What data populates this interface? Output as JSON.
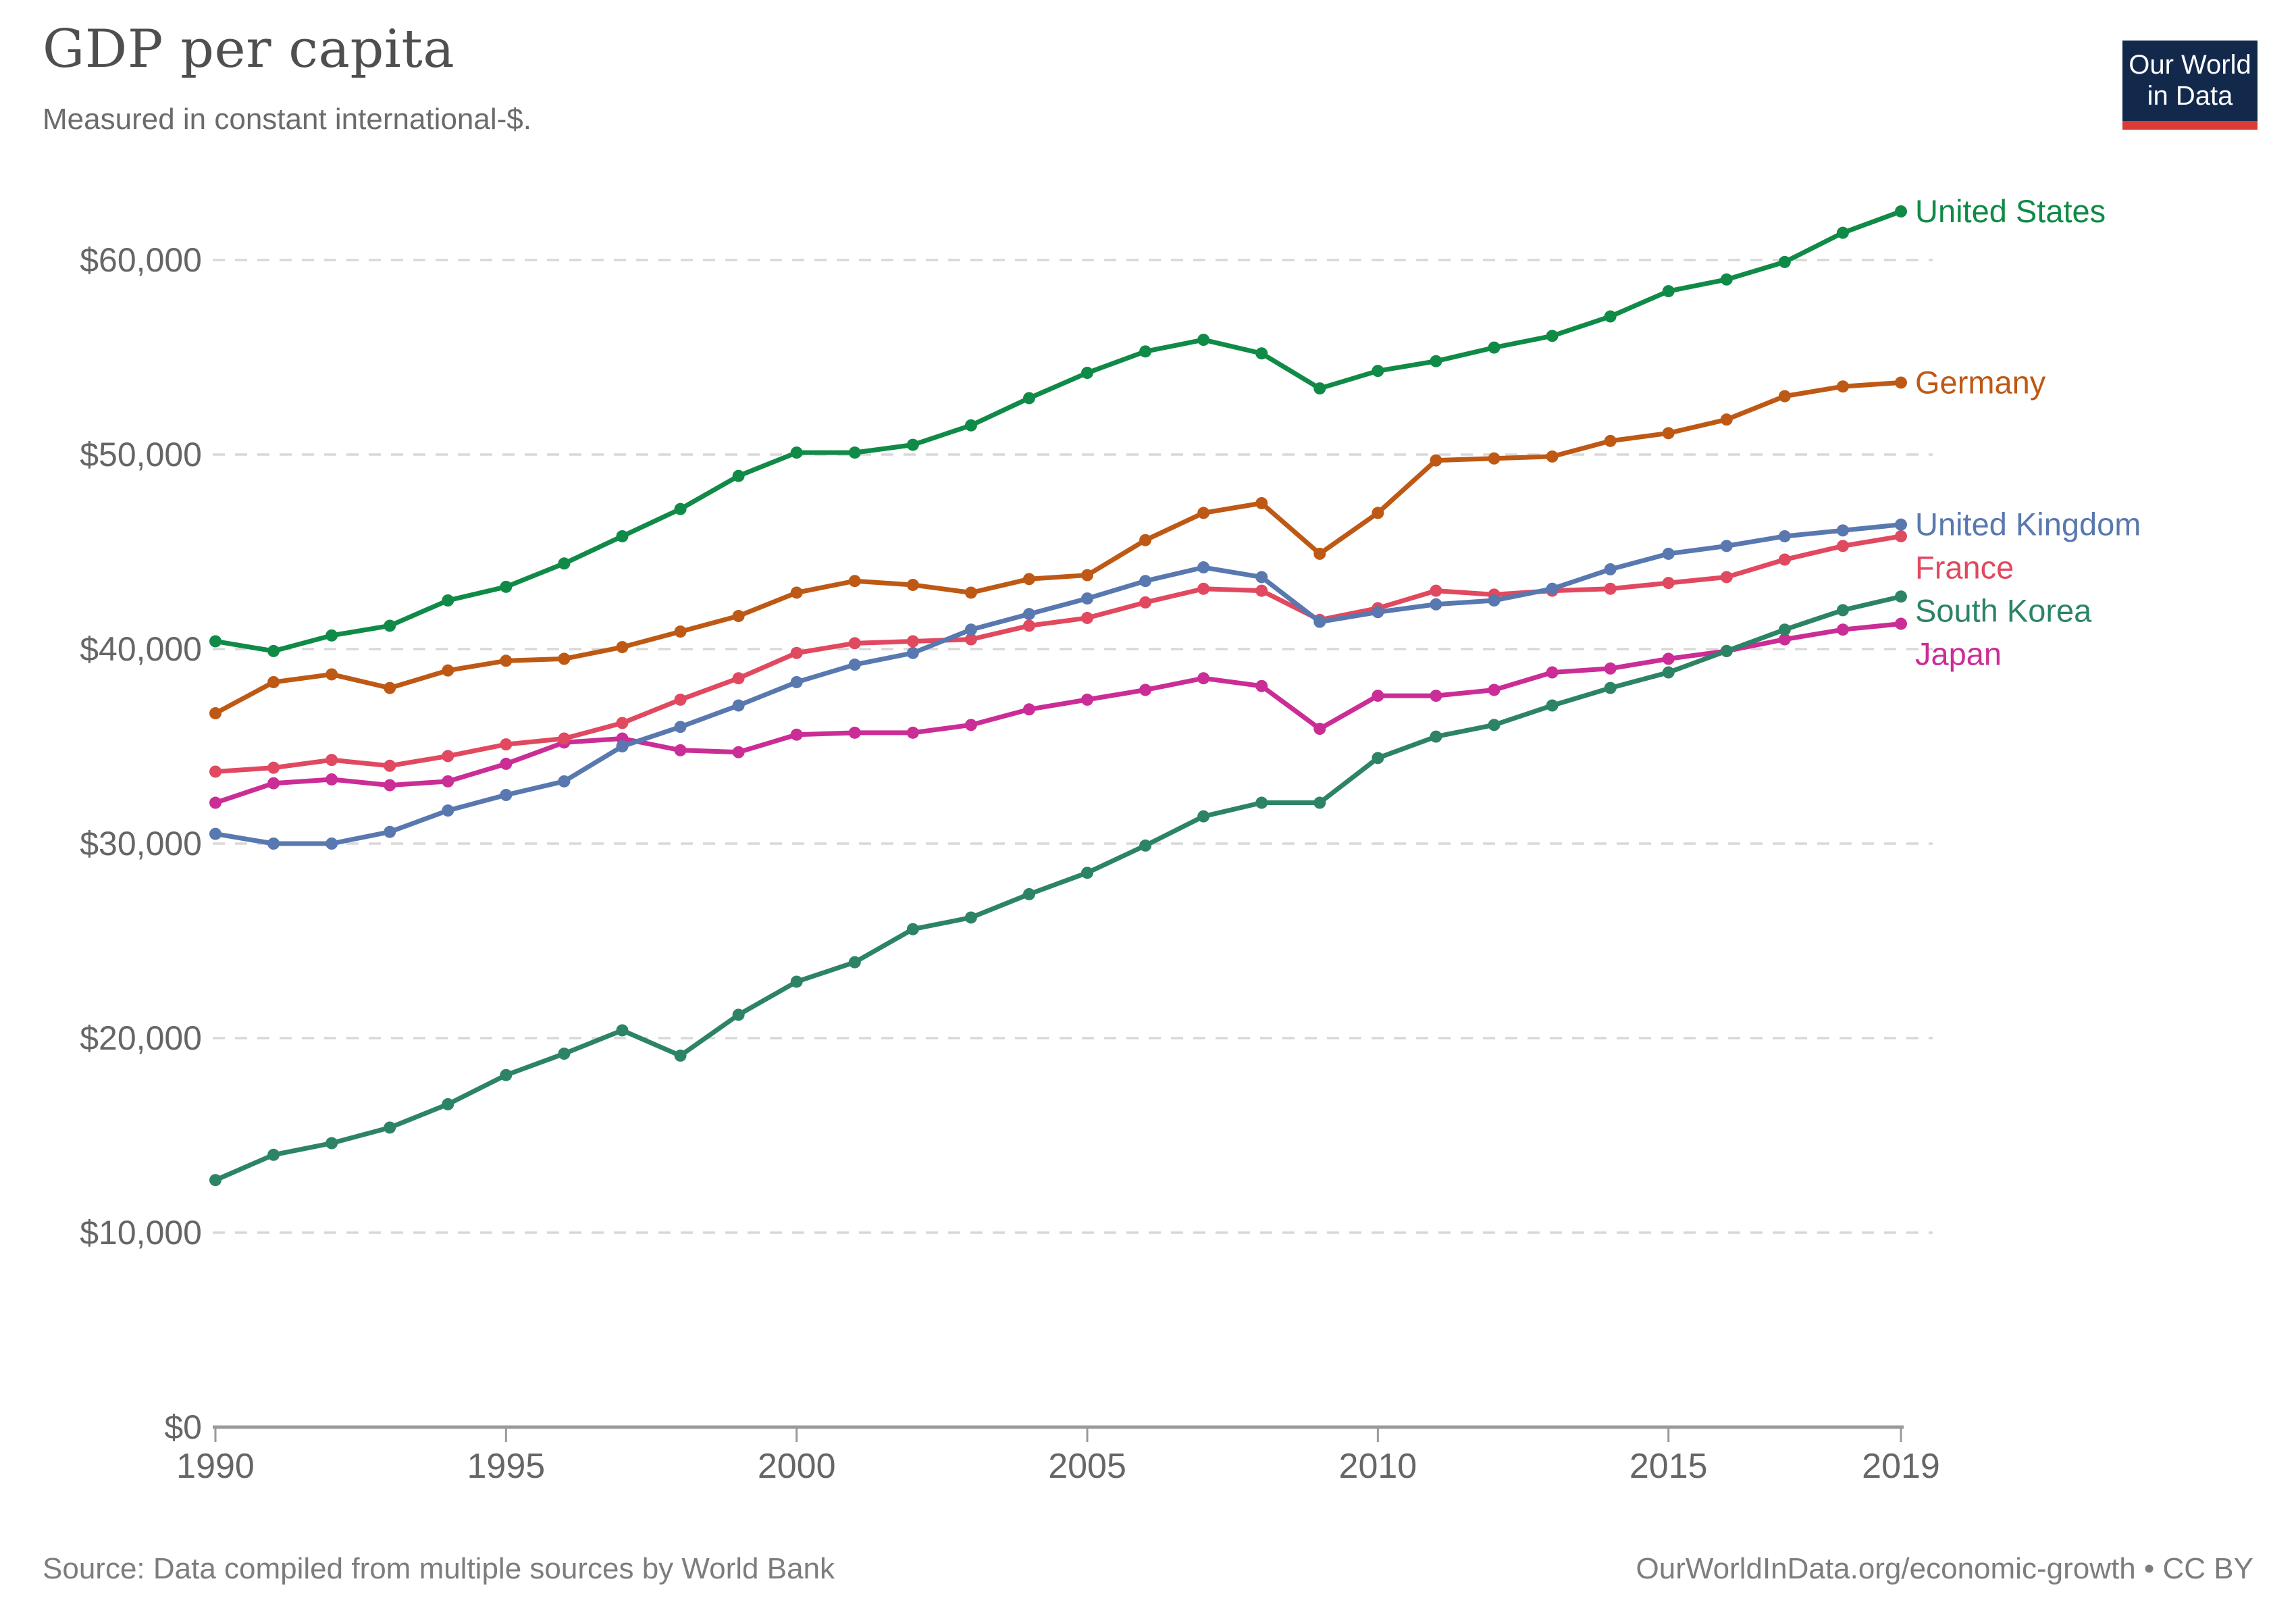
{
  "header": {
    "title": "GDP per capita",
    "subtitle": "Measured in constant international-$."
  },
  "logo": {
    "line1": "Our World",
    "line2": "in Data",
    "bg_color": "#12294b",
    "bar_color": "#dc3a34"
  },
  "footer": {
    "source": "Source: Data compiled from multiple sources by World Bank",
    "link": "OurWorldInData.org/economic-growth",
    "license": "CC BY",
    "right_text": "OurWorldInData.org/economic-growth • CC BY"
  },
  "colors": {
    "grid": "#d8d8d8",
    "axis": "#9a9a9a",
    "tick_label": "#666666",
    "title": "#4f4f4f",
    "subtitle": "#6b6b6b",
    "footer": "#7d7d7d"
  },
  "chart_data": {
    "type": "line",
    "title": "GDP per capita",
    "subtitle": "Measured in constant international-$.",
    "xlabel": "",
    "ylabel": "",
    "x": [
      1990,
      1991,
      1992,
      1993,
      1994,
      1995,
      1996,
      1997,
      1998,
      1999,
      2000,
      2001,
      2002,
      2003,
      2004,
      2005,
      2006,
      2007,
      2008,
      2009,
      2010,
      2011,
      2012,
      2013,
      2014,
      2015,
      2016,
      2017,
      2018,
      2019
    ],
    "x_ticks": [
      1990,
      1995,
      2000,
      2005,
      2010,
      2015,
      2019
    ],
    "y_ticks": [
      0,
      10000,
      20000,
      30000,
      40000,
      50000,
      60000
    ],
    "ylim": [
      0,
      64000
    ],
    "xlim": [
      1990,
      2019
    ],
    "grid": "horizontal-dashed",
    "legend_position": "right-edge-direct-labels",
    "marker": "dot",
    "series": [
      {
        "name": "United States",
        "color": "#108a47",
        "values": [
          40400,
          39900,
          40700,
          41200,
          42500,
          43200,
          44400,
          45800,
          47200,
          48900,
          50100,
          50100,
          50500,
          51500,
          52900,
          54200,
          55300,
          55900,
          55200,
          53400,
          54300,
          54800,
          55500,
          56100,
          57100,
          58400,
          59000,
          59900,
          61400,
          62500
        ]
      },
      {
        "name": "Germany",
        "color": "#be5915",
        "values": [
          36700,
          38300,
          38700,
          38000,
          38900,
          39400,
          39500,
          40100,
          40900,
          41700,
          42900,
          43500,
          43300,
          42900,
          43600,
          43800,
          45600,
          47000,
          47500,
          44900,
          47000,
          49700,
          49800,
          49900,
          50700,
          51100,
          51800,
          53000,
          53500,
          53700
        ]
      },
      {
        "name": "United Kingdom",
        "color": "#5878af",
        "values": [
          30500,
          30000,
          30000,
          30600,
          31700,
          32500,
          33200,
          35000,
          36000,
          37100,
          38300,
          39200,
          39800,
          41000,
          41800,
          42600,
          43500,
          44200,
          43700,
          41400,
          41900,
          42300,
          42500,
          43100,
          44100,
          44900,
          45300,
          45800,
          46100,
          46400
        ]
      },
      {
        "name": "France",
        "color": "#e0495f",
        "values": [
          33700,
          33900,
          34300,
          34000,
          34500,
          35100,
          35400,
          36200,
          37400,
          38500,
          39800,
          40300,
          40400,
          40500,
          41200,
          41600,
          42400,
          43100,
          43000,
          41500,
          42100,
          43000,
          42800,
          43000,
          43100,
          43400,
          43700,
          44600,
          45300,
          45800
        ]
      },
      {
        "name": "South Korea",
        "color": "#2c8465",
        "values": [
          12700,
          14000,
          14600,
          15400,
          16600,
          18100,
          19200,
          20400,
          19100,
          21200,
          22900,
          23900,
          25600,
          26200,
          27400,
          28500,
          29900,
          31400,
          32100,
          32100,
          34400,
          35500,
          36100,
          37100,
          38000,
          38800,
          39900,
          41000,
          42000,
          42700
        ]
      },
      {
        "name": "Japan",
        "color": "#cb2d96",
        "values": [
          32100,
          33100,
          33300,
          33000,
          33200,
          34100,
          35200,
          35400,
          34800,
          34700,
          35600,
          35700,
          35700,
          36100,
          36900,
          37400,
          37900,
          38500,
          38100,
          35900,
          37600,
          37600,
          37900,
          38800,
          39000,
          39500,
          39900,
          40500,
          41000,
          41300
        ]
      }
    ]
  }
}
